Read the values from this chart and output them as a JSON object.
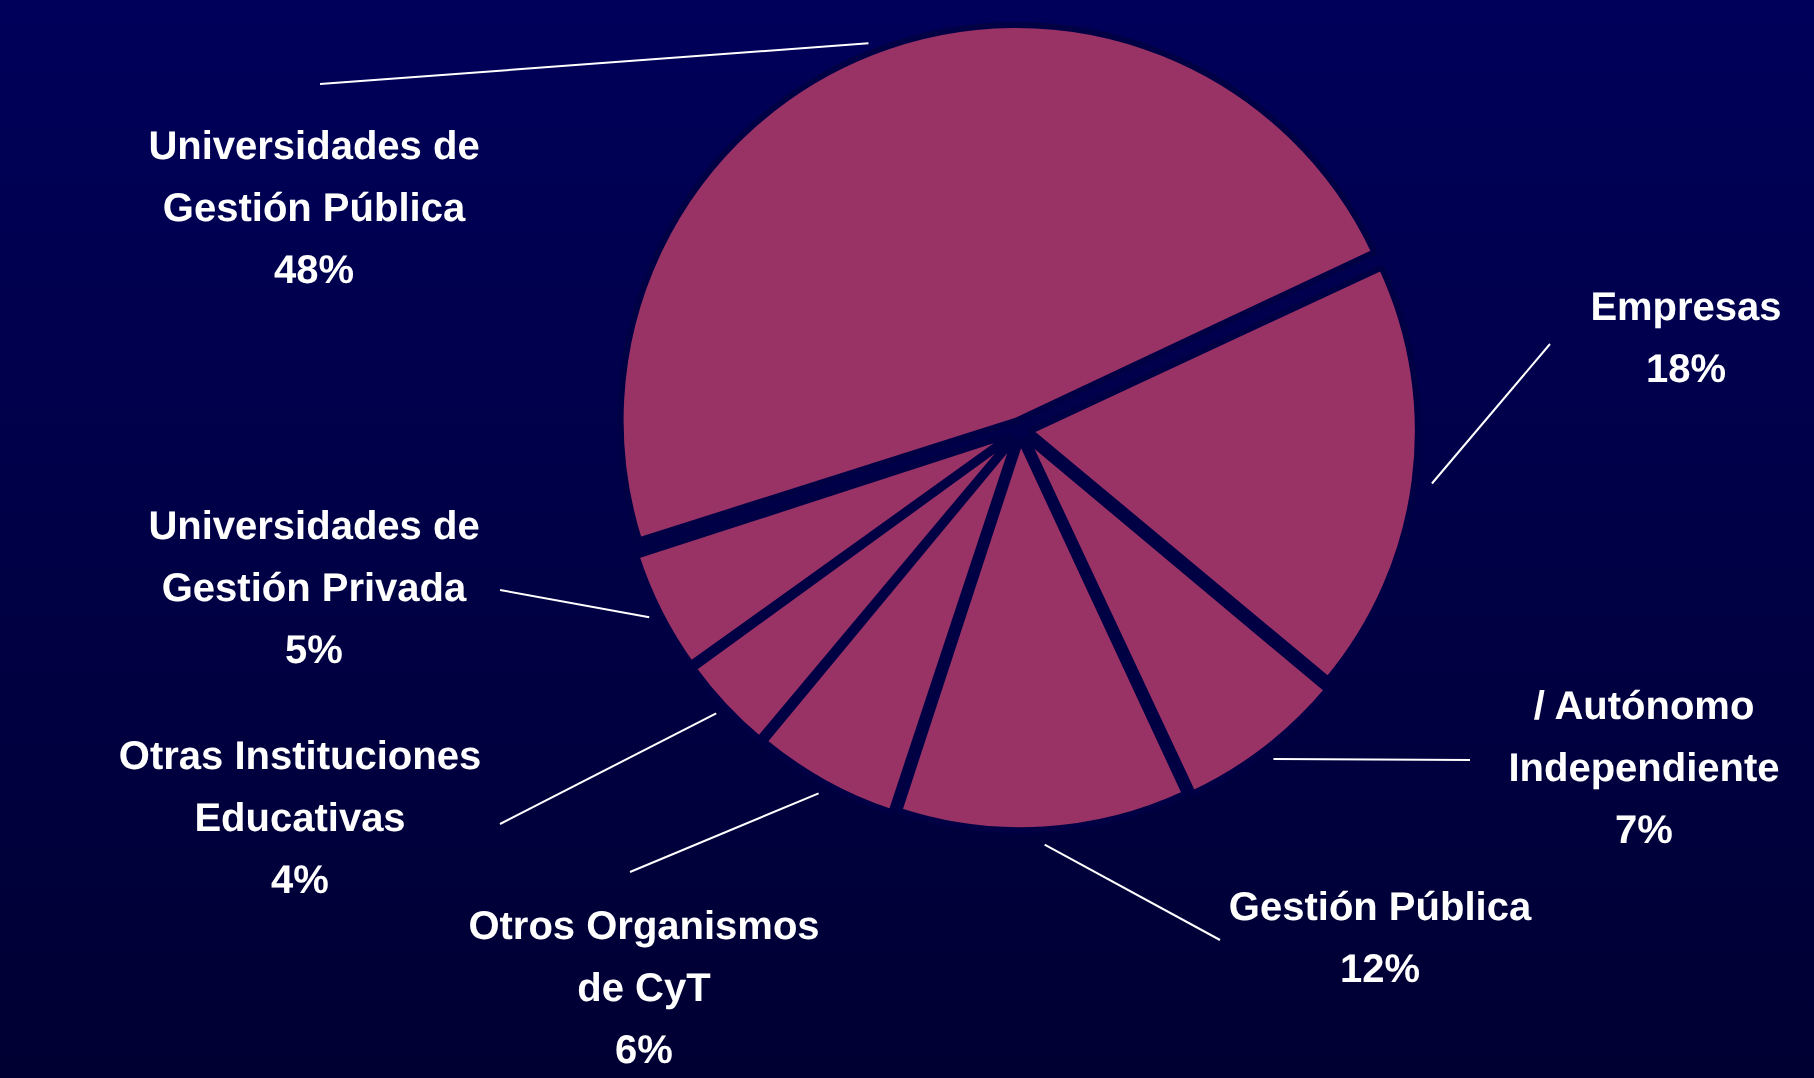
{
  "chart_data": {
    "type": "pie",
    "categories": [
      "Empresas",
      "/ Autónomo Independiente",
      "Gestión Pública",
      "Otros Organismos de CyT",
      "Otras Instituciones Educativas",
      "Universidades de Gestión Privada",
      "Universidades de Gestión Pública"
    ],
    "values": [
      18,
      7,
      12,
      6,
      4,
      5,
      48
    ],
    "value_labels": [
      "18%",
      "7%",
      "12%",
      "6%",
      "4%",
      "5%",
      "48%"
    ],
    "colors": [
      "#993366",
      "#993366",
      "#993366",
      "#993366",
      "#993366",
      "#993366",
      "#993366"
    ],
    "legend": false
  }
}
